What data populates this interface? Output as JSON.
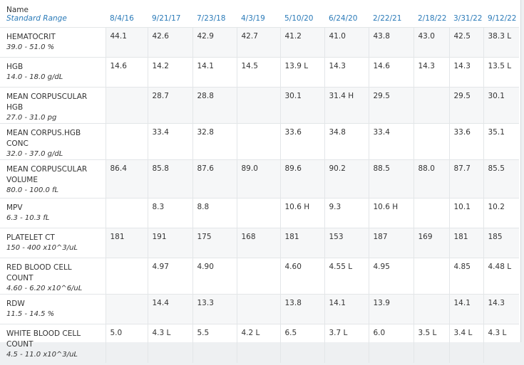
{
  "header": {
    "name": "Name",
    "range": "Standard Range",
    "dates": [
      "8/4/16",
      "9/21/17",
      "7/23/18",
      "4/3/19",
      "5/10/20",
      "6/24/20",
      "2/22/21",
      "2/18/22",
      "3/31/22",
      "9/12/22"
    ]
  },
  "rows": [
    {
      "name": "HEMATOCRIT",
      "range": "39.0 - 51.0 %",
      "values": [
        "44.1",
        "42.6",
        "42.9",
        "42.7",
        "41.2",
        "41.0",
        "43.8",
        "43.0",
        "42.5",
        "38.3 L"
      ]
    },
    {
      "name": "HGB",
      "range": "14.0 - 18.0 g/dL",
      "values": [
        "14.6",
        "14.2",
        "14.1",
        "14.5",
        "13.9 L",
        "14.3",
        "14.6",
        "14.3",
        "14.3",
        "13.5 L"
      ]
    },
    {
      "name": "MEAN CORPUSCULAR HGB",
      "range": "27.0 - 31.0 pg",
      "values": [
        null,
        "28.7",
        "28.8",
        null,
        "30.1",
        "31.4 H",
        "29.5",
        null,
        "29.5",
        "30.1"
      ]
    },
    {
      "name": "MEAN CORPUS.HGB CONC",
      "range": "32.0 - 37.0 g/dL",
      "values": [
        null,
        "33.4",
        "32.8",
        null,
        "33.6",
        "34.8",
        "33.4",
        null,
        "33.6",
        "35.1"
      ]
    },
    {
      "name": "MEAN CORPUSCULAR VOLUME",
      "range": "80.0 - 100.0 fL",
      "values": [
        "86.4",
        "85.8",
        "87.6",
        "89.0",
        "89.6",
        "90.2",
        "88.5",
        "88.0",
        "87.7",
        "85.5"
      ]
    },
    {
      "name": "MPV",
      "range": "6.3 - 10.3 fL",
      "values": [
        null,
        "8.3",
        "8.8",
        null,
        "10.6 H",
        "9.3",
        "10.6 H",
        null,
        "10.1",
        "10.2"
      ]
    },
    {
      "name": "PLATELET CT",
      "range": "150 - 400 x10^3/uL",
      "values": [
        "181",
        "191",
        "175",
        "168",
        "181",
        "153",
        "187",
        "169",
        "181",
        "185"
      ]
    },
    {
      "name": "RED BLOOD CELL COUNT",
      "range": "4.60 - 6.20 x10^6/uL",
      "values": [
        null,
        "4.97",
        "4.90",
        null,
        "4.60",
        "4.55 L",
        "4.95",
        null,
        "4.85",
        "4.48 L"
      ]
    },
    {
      "name": "RDW",
      "range": "11.5 - 14.5 %",
      "values": [
        null,
        "14.4",
        "13.3",
        null,
        "13.8",
        "14.1",
        "13.9",
        null,
        "14.1",
        "14.3"
      ]
    },
    {
      "name": "WHITE BLOOD CELL COUNT",
      "range": "4.5 - 11.0 x10^3/uL",
      "values": [
        "5.0",
        "4.3 L",
        "5.5",
        "4.2 L",
        "6.5",
        "3.7 L",
        "6.0",
        "3.5 L",
        "3.4 L",
        "4.3 L"
      ]
    }
  ]
}
